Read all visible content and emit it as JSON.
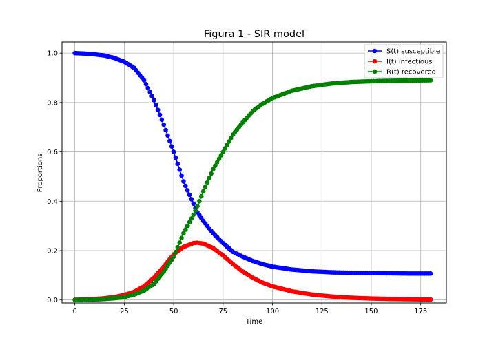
{
  "chart_data": {
    "type": "line",
    "title": "Figura 1 - SIR model",
    "xlabel": "Time",
    "ylabel": "Proportions",
    "xlim": [
      -6.5,
      188
    ],
    "ylim": [
      -0.012,
      1.045
    ],
    "x_ticks": [
      0,
      25,
      50,
      75,
      100,
      125,
      150,
      175
    ],
    "y_ticks": [
      0.0,
      0.2,
      0.4,
      0.6,
      0.8,
      1.0
    ],
    "x_tick_labels": [
      "0",
      "25",
      "50",
      "75",
      "100",
      "125",
      "150",
      "175"
    ],
    "y_tick_labels": [
      "0.0",
      "0.2",
      "0.4",
      "0.6",
      "0.8",
      "1.0"
    ],
    "grid": true,
    "legend_position": "top-right",
    "marker": "circle",
    "x": [
      0,
      5,
      10,
      15,
      20,
      25,
      30,
      35,
      40,
      45,
      50,
      55,
      60,
      62,
      65,
      70,
      75,
      80,
      85,
      90,
      95,
      100,
      110,
      120,
      130,
      140,
      150,
      160,
      170,
      180
    ],
    "series": [
      {
        "name": "S(t) susceptible",
        "color": "#0000ff",
        "values": [
          1.0,
          0.998,
          0.995,
          0.99,
          0.98,
          0.965,
          0.94,
          0.89,
          0.81,
          0.71,
          0.6,
          0.48,
          0.39,
          0.355,
          0.32,
          0.27,
          0.23,
          0.195,
          0.175,
          0.158,
          0.145,
          0.135,
          0.123,
          0.116,
          0.112,
          0.11,
          0.109,
          0.108,
          0.107,
          0.107
        ]
      },
      {
        "name": "I(t) infectious",
        "color": "#ff0000",
        "values": [
          0.001,
          0.002,
          0.004,
          0.007,
          0.012,
          0.02,
          0.033,
          0.055,
          0.09,
          0.135,
          0.185,
          0.215,
          0.23,
          0.232,
          0.228,
          0.21,
          0.18,
          0.145,
          0.115,
          0.09,
          0.07,
          0.055,
          0.035,
          0.022,
          0.014,
          0.009,
          0.006,
          0.004,
          0.003,
          0.002
        ]
      },
      {
        "name": "R(t) recovered",
        "color": "#008000",
        "values": [
          0.0,
          0.001,
          0.002,
          0.004,
          0.007,
          0.012,
          0.022,
          0.038,
          0.065,
          0.115,
          0.175,
          0.27,
          0.345,
          0.38,
          0.44,
          0.53,
          0.6,
          0.67,
          0.72,
          0.765,
          0.795,
          0.818,
          0.848,
          0.866,
          0.877,
          0.883,
          0.886,
          0.888,
          0.889,
          0.89
        ]
      }
    ]
  }
}
